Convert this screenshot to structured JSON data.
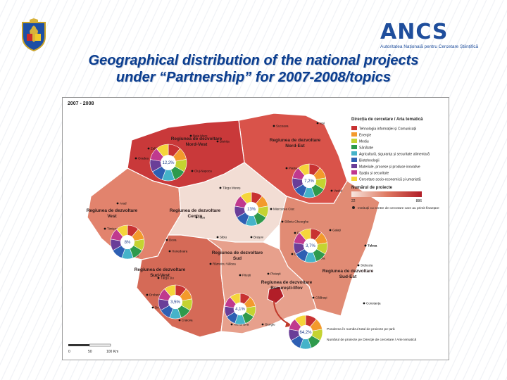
{
  "slide": {
    "title_line1": "Geographical distribution of the national projects",
    "title_line2": "under “Partnership” for 2007-2008/topics",
    "logo_text": "ANCS",
    "logo_subtitle": "Autoritatea Națională pentru Cercetare Științifică"
  },
  "map": {
    "year_label": "2007 - 2008",
    "regions": [
      {
        "id": "nord-vest",
        "name_l1": "Regiunea de dezvoltare",
        "name_l2": "Nord-Vest",
        "pct": "12,2%",
        "color": "#c9393a"
      },
      {
        "id": "nord-est",
        "name_l1": "Regiunea de dezvoltare",
        "name_l2": "Nord-Est",
        "pct": "7,2%",
        "color": "#d9534a"
      },
      {
        "id": "vest",
        "name_l1": "Regiunea de dezvoltare",
        "name_l2": "Vest",
        "pct": "8%",
        "color": "#e2836d"
      },
      {
        "id": "centru",
        "name_l1": "Regiunea de dezvoltare",
        "name_l2": "Centru",
        "pct": "13%",
        "color": "#f2ddd4"
      },
      {
        "id": "sud-vest",
        "name_l1": "Regiunea de dezvoltare",
        "name_l2": "Sud-Vest",
        "pct": "3,5%",
        "color": "#d56a57"
      },
      {
        "id": "sud",
        "name_l1": "Regiunea de dezvoltare",
        "name_l2": "Sud",
        "pct": "4,1%",
        "color": "#e7a08c"
      },
      {
        "id": "sud-est",
        "name_l1": "Regiunea de dezvoltare",
        "name_l2": "Sud-Est",
        "pct": "3,7%",
        "color": "#e18b74"
      },
      {
        "id": "bucuresti-ilfov",
        "name_l1": "Regiunea de dezvoltare",
        "name_l2": "București-Ilfov",
        "pct": "64,2%",
        "color": "#b21e28"
      }
    ],
    "cities": [
      "Baia Mare",
      "Suceava",
      "Iași",
      "Oradea",
      "Zalău",
      "Bistrița",
      "Cluj-Napoca",
      "Piatra Neamț",
      "Bacău",
      "Vaslui",
      "Târgu Mureș",
      "Arad",
      "Alba",
      "Sibiu",
      "Brașov",
      "Focșani",
      "Timișoara",
      "Deva",
      "Reșița",
      "Slobozia",
      "Tulcea",
      "Brăila",
      "Buzău",
      "Constanța",
      "Craiova",
      "Pitești",
      "Ploiești",
      "Giurgiu",
      "Drobeta-Turnu Severin",
      "Râmnicu Vâlcea",
      "Târgu Jiu",
      "Galați",
      "Hunedoara",
      "Miercurea Ciuc",
      "Sfântu Gheorghe",
      "Tulcea",
      "Drobeta",
      "Călărași",
      "Alexandria"
    ],
    "legend": {
      "title": "Direcția de cercetare / Aria tematică",
      "items": [
        {
          "label": "Tehnologia informației și Comunicații",
          "color": "#c83232"
        },
        {
          "label": "Energie",
          "color": "#f39a2c"
        },
        {
          "label": "Mediu",
          "color": "#c4d331"
        },
        {
          "label": "Sănătate",
          "color": "#2e9a4c"
        },
        {
          "label": "Agricultură, siguranța și securitate alimentară",
          "color": "#45b3c9"
        },
        {
          "label": "Biotehnologii",
          "color": "#2e5fb3"
        },
        {
          "label": "Materiale, procese și produse inovative",
          "color": "#6a3e98"
        },
        {
          "label": "Spațiu și securitate",
          "color": "#c0398e"
        },
        {
          "label": "Cercetare socio-economică și umanistă",
          "color": "#f5d53b"
        }
      ],
      "scale_title": "Numărul de proiecte",
      "scale_min": "22",
      "scale_max": "886",
      "marker_note": "Instituții cu centre de cercetare care au primit finanțare",
      "callout_1": "Ponderea în numărul total de proiecte pe țară",
      "callout_2": "Numărul de proiecte pe Direcție de cercetare / Arie tematică",
      "scale_bar": [
        "0",
        "50",
        "100 Km"
      ]
    }
  }
}
